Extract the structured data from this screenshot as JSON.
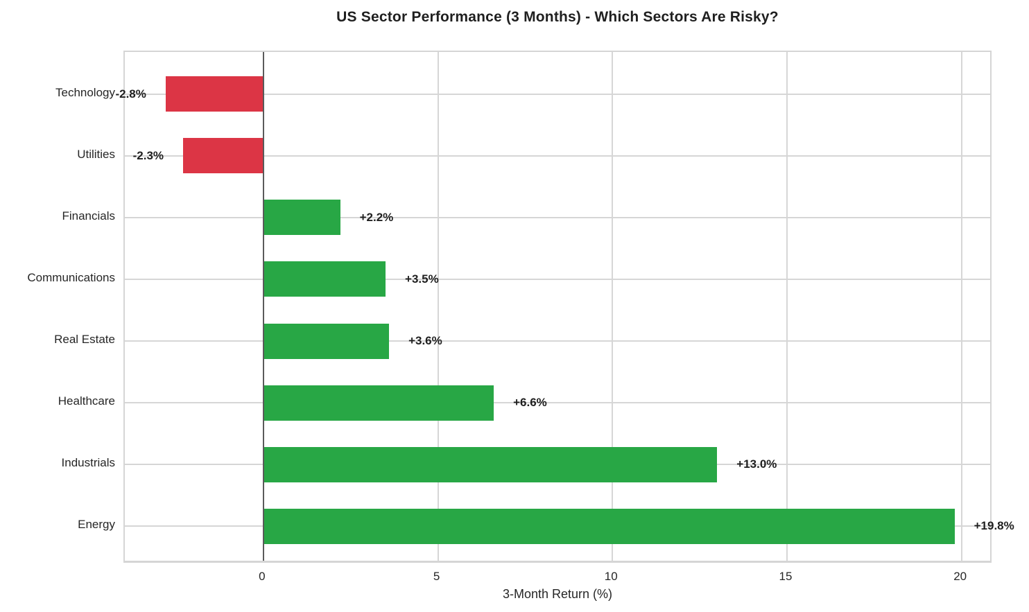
{
  "chart_data": {
    "type": "bar",
    "orientation": "horizontal",
    "title": "US Sector Performance (3 Months) - Which Sectors Are Risky?",
    "xlabel": "3-Month Return (%)",
    "ylabel": "",
    "categories": [
      "Technology",
      "Utilities",
      "Financials",
      "Communications",
      "Real Estate",
      "Healthcare",
      "Industrials",
      "Energy"
    ],
    "values": [
      -2.8,
      -2.3,
      2.2,
      3.5,
      3.6,
      6.6,
      13.0,
      19.8
    ],
    "bar_labels": [
      "-2.8%",
      "-2.3%",
      "+2.2%",
      "+3.5%",
      "+3.6%",
      "+6.6%",
      "+13.0%",
      "+19.8%"
    ],
    "x_ticks": [
      "0",
      "5",
      "10",
      "15",
      "20"
    ],
    "x_tick_values": [
      0,
      5,
      10,
      15,
      20
    ],
    "xlim": [
      -3.97,
      20.9
    ],
    "grid": true,
    "legend": false,
    "colors": {
      "positive_bar": "#28a745",
      "negative_bar": "#dc3545",
      "zero_line": "#5a5a5a",
      "grid_line": "#d6d6d6",
      "text": "#262626"
    }
  }
}
